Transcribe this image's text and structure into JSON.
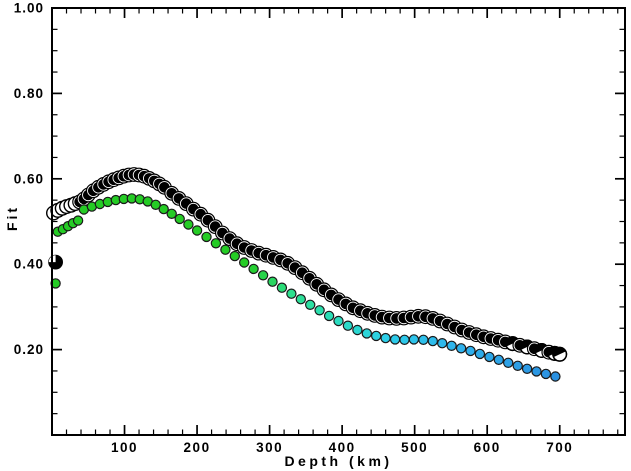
{
  "figure": {
    "background": "#ffffff",
    "frame_color": "#000000",
    "text_color": "#000000"
  },
  "chart_data": {
    "type": "scatter",
    "title": "",
    "xlabel": "Depth (km)",
    "ylabel": "Fit",
    "xlim": [
      0,
      790
    ],
    "ylim": [
      0.0,
      1.0
    ],
    "grid": false,
    "legend": null,
    "x_major_ticks": [
      100,
      200,
      300,
      400,
      500,
      600,
      700
    ],
    "x_tick_labels": [
      "100",
      "200",
      "300",
      "400",
      "500",
      "600",
      "700"
    ],
    "x_minor_step": 20,
    "y_major_ticks": [
      0.2,
      0.4,
      0.6,
      0.8,
      1.0
    ],
    "y_tick_labels": [
      "0.20",
      "0.40",
      "0.60",
      "0.80",
      "1.00"
    ],
    "y_minor_step": 0.05,
    "marker_style_key": {
      "0": "filled-black-circle",
      "1": "open-white-circle",
      "2": "black-ball-white-quadrant",
      "3": "white-ball-black-half"
    },
    "series": [
      {
        "name": "beachball-fit-curve",
        "marker": "large-circle",
        "radius": 6.8,
        "face": "#ffffff",
        "fill": "#000000",
        "stroke": "#000000",
        "points": [
          [
            5,
            0.405,
            2
          ],
          [
            2,
            0.52,
            1
          ],
          [
            8,
            0.526,
            1
          ],
          [
            14,
            0.531,
            1
          ],
          [
            20,
            0.535,
            1
          ],
          [
            26,
            0.538,
            1
          ],
          [
            32,
            0.542,
            1
          ],
          [
            38,
            0.546,
            0
          ],
          [
            44,
            0.553,
            0
          ],
          [
            50,
            0.562,
            0
          ],
          [
            57,
            0.572,
            0
          ],
          [
            64,
            0.58,
            0
          ],
          [
            71,
            0.587,
            0
          ],
          [
            78,
            0.593,
            0
          ],
          [
            85,
            0.598,
            0
          ],
          [
            92,
            0.602,
            0
          ],
          [
            99,
            0.606,
            0
          ],
          [
            106,
            0.609,
            0
          ],
          [
            113,
            0.61,
            0
          ],
          [
            120,
            0.609,
            0
          ],
          [
            127,
            0.606,
            0
          ],
          [
            134,
            0.601,
            0
          ],
          [
            141,
            0.595,
            0
          ],
          [
            148,
            0.588,
            0
          ],
          [
            155,
            0.58,
            0
          ],
          [
            165,
            0.566,
            0
          ],
          [
            175,
            0.554,
            0
          ],
          [
            185,
            0.542,
            0
          ],
          [
            195,
            0.529,
            0
          ],
          [
            205,
            0.517,
            0
          ],
          [
            215,
            0.503,
            0
          ],
          [
            225,
            0.488,
            0
          ],
          [
            235,
            0.473,
            0
          ],
          [
            245,
            0.46,
            0
          ],
          [
            255,
            0.448,
            0
          ],
          [
            265,
            0.439,
            0
          ],
          [
            275,
            0.432,
            0
          ],
          [
            285,
            0.426,
            0
          ],
          [
            295,
            0.421,
            0
          ],
          [
            305,
            0.416,
            0
          ],
          [
            315,
            0.41,
            0
          ],
          [
            325,
            0.402,
            0
          ],
          [
            335,
            0.392,
            0
          ],
          [
            345,
            0.38,
            0
          ],
          [
            355,
            0.367,
            0
          ],
          [
            365,
            0.353,
            0
          ],
          [
            375,
            0.34,
            0
          ],
          [
            385,
            0.328,
            0
          ],
          [
            395,
            0.317,
            0
          ],
          [
            405,
            0.307,
            0
          ],
          [
            415,
            0.298,
            0
          ],
          [
            425,
            0.291,
            0
          ],
          [
            435,
            0.285,
            0
          ],
          [
            445,
            0.28,
            0
          ],
          [
            455,
            0.276,
            0
          ],
          [
            465,
            0.274,
            0
          ],
          [
            475,
            0.273,
            0
          ],
          [
            485,
            0.274,
            0
          ],
          [
            495,
            0.276,
            0
          ],
          [
            505,
            0.278,
            0
          ],
          [
            515,
            0.277,
            0
          ],
          [
            525,
            0.273,
            0
          ],
          [
            535,
            0.267,
            0
          ],
          [
            545,
            0.26,
            0
          ],
          [
            555,
            0.253,
            0
          ],
          [
            565,
            0.246,
            0
          ],
          [
            575,
            0.24,
            0
          ],
          [
            585,
            0.235,
            0
          ],
          [
            595,
            0.23,
            0
          ],
          [
            605,
            0.226,
            0
          ],
          [
            615,
            0.222,
            0
          ],
          [
            625,
            0.218,
            0
          ],
          [
            635,
            0.214,
            3
          ],
          [
            645,
            0.21,
            0
          ],
          [
            655,
            0.206,
            3
          ],
          [
            665,
            0.202,
            0
          ],
          [
            675,
            0.198,
            3
          ],
          [
            685,
            0.194,
            0
          ],
          [
            693,
            0.191,
            3
          ],
          [
            700,
            0.189,
            3
          ]
        ]
      },
      {
        "name": "colored-dot-fit-curve",
        "marker": "small-circle",
        "radius": 4.6,
        "stroke": "#1a1a1a",
        "color_ramp": [
          [
            0,
            "#25CC25"
          ],
          [
            270,
            "#25CC25"
          ],
          [
            330,
            "#2CE08E"
          ],
          [
            400,
            "#2BDCC4"
          ],
          [
            460,
            "#2CCEE8"
          ],
          [
            560,
            "#2FB2EC"
          ],
          [
            700,
            "#2A8FE0"
          ]
        ],
        "points": [
          [
            5,
            0.355
          ],
          [
            8,
            0.476
          ],
          [
            15,
            0.482
          ],
          [
            22,
            0.489
          ],
          [
            29,
            0.496
          ],
          [
            36,
            0.502
          ],
          [
            44,
            0.528
          ],
          [
            55,
            0.535
          ],
          [
            66,
            0.541
          ],
          [
            77,
            0.546
          ],
          [
            88,
            0.55
          ],
          [
            99,
            0.553
          ],
          [
            110,
            0.554
          ],
          [
            121,
            0.552
          ],
          [
            132,
            0.547
          ],
          [
            143,
            0.539
          ],
          [
            154,
            0.529
          ],
          [
            165,
            0.518
          ],
          [
            176,
            0.506
          ],
          [
            188,
            0.493
          ],
          [
            200,
            0.479
          ],
          [
            213,
            0.464
          ],
          [
            226,
            0.449
          ],
          [
            239,
            0.434
          ],
          [
            252,
            0.419
          ],
          [
            265,
            0.404
          ],
          [
            278,
            0.389
          ],
          [
            291,
            0.374
          ],
          [
            304,
            0.359
          ],
          [
            317,
            0.345
          ],
          [
            330,
            0.331
          ],
          [
            343,
            0.318
          ],
          [
            356,
            0.305
          ],
          [
            369,
            0.292
          ],
          [
            382,
            0.279
          ],
          [
            395,
            0.267
          ],
          [
            408,
            0.256
          ],
          [
            421,
            0.246
          ],
          [
            434,
            0.238
          ],
          [
            447,
            0.232
          ],
          [
            460,
            0.227
          ],
          [
            473,
            0.224
          ],
          [
            486,
            0.223
          ],
          [
            499,
            0.224
          ],
          [
            512,
            0.223
          ],
          [
            525,
            0.22
          ],
          [
            538,
            0.215
          ],
          [
            551,
            0.209
          ],
          [
            564,
            0.203
          ],
          [
            577,
            0.197
          ],
          [
            590,
            0.19
          ],
          [
            603,
            0.183
          ],
          [
            616,
            0.176
          ],
          [
            629,
            0.169
          ],
          [
            642,
            0.162
          ],
          [
            655,
            0.155
          ],
          [
            668,
            0.149
          ],
          [
            681,
            0.143
          ],
          [
            694,
            0.137
          ]
        ]
      }
    ]
  }
}
